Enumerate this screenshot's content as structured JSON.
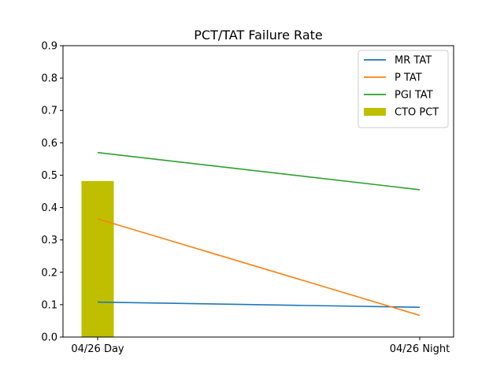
{
  "chart_data": {
    "type": "line",
    "title": "PCT/TAT Failure Rate",
    "xlabel": "",
    "ylabel": "",
    "categories": [
      "04/26 Day",
      "04/26 Night"
    ],
    "ylim": [
      0,
      0.9
    ],
    "yticks": [
      "0.0",
      "0.1",
      "0.2",
      "0.3",
      "0.4",
      "0.5",
      "0.6",
      "0.7",
      "0.8",
      "0.9"
    ],
    "grid": false,
    "legend_position": "top-right",
    "series": [
      {
        "name": "MR TAT",
        "kind": "line",
        "color": "#1f77b4",
        "values": [
          0.108,
          0.092
        ]
      },
      {
        "name": "P TAT",
        "kind": "line",
        "color": "#ff7f0e",
        "values": [
          0.365,
          0.067
        ]
      },
      {
        "name": "PGI TAT",
        "kind": "line",
        "color": "#2ca02c",
        "values": [
          0.57,
          0.455
        ]
      },
      {
        "name": "CTO PCT",
        "kind": "bar",
        "color": "#bfbf00",
        "values": [
          0.482,
          null
        ]
      }
    ]
  }
}
